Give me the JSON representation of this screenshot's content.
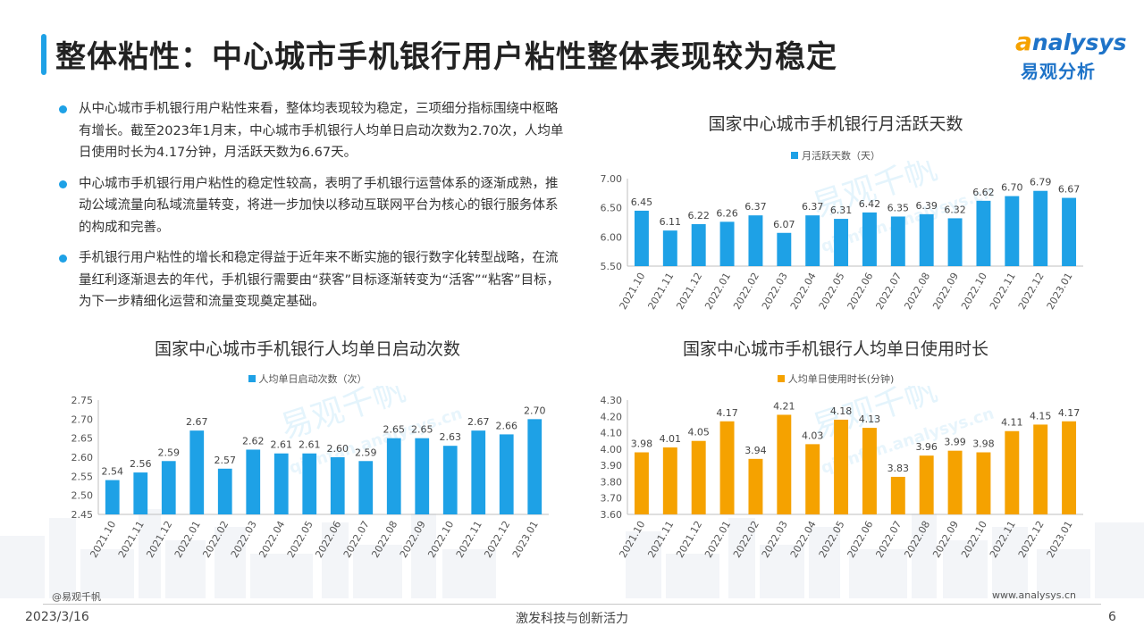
{
  "header": {
    "title": "整体粘性：中心城市手机银行用户粘性整体表现较为稳定"
  },
  "logo": {
    "brand_en_initial": "a",
    "brand_en_rest": "nalysys",
    "brand_cn": "易观分析"
  },
  "bullets": [
    "从中心城市手机银行用户粘性来看，整体均表现较为稳定，三项细分指标围绕中枢略有增长。截至2023年1月末，中心城市手机银行人均单日启动次数为2.70次，人均单日使用时长为4.17分钟，月活跃天数为6.67天。",
    "中心城市手机银行用户粘性的稳定性较高，表明了手机银行运营体系的逐渐成熟，推动公域流量向私域流量转变，将进一步加快以移动互联网平台为核心的银行服务体系的构成和完善。",
    "手机银行用户粘性的增长和稳定得益于近年来不断实施的银行数字化转型战略，在流量红利逐渐退去的年代，手机银行需要由“获客”目标逐渐转变为“活客”“粘客”目标，为下一步精细化运营和流量变现奠定基础。"
  ],
  "watermark": {
    "cn": "易观千帆",
    "en": "qianfan.analysys.cn"
  },
  "footer": {
    "brand": "@易观千帆",
    "url": "www.analysys.cn",
    "date": "2023/3/16",
    "slogan": "激发科技与创新活力",
    "page": "6"
  },
  "chart_data": [
    {
      "id": "monthly-active-days",
      "type": "bar",
      "title": "国家中心城市手机银行月活跃天数",
      "series": [
        {
          "name": "月活跃天数（天）",
          "color": "#1ea1e6",
          "values": [
            6.45,
            6.11,
            6.22,
            6.26,
            6.37,
            6.07,
            6.37,
            6.31,
            6.42,
            6.35,
            6.39,
            6.32,
            6.62,
            6.7,
            6.79,
            6.67
          ]
        }
      ],
      "categories": [
        "2021.10",
        "2021.11",
        "2021.12",
        "2022.01",
        "2022.02",
        "2022.03",
        "2022.04",
        "2022.05",
        "2022.06",
        "2022.07",
        "2022.08",
        "2022.09",
        "2022.10",
        "2022.11",
        "2022.12",
        "2023.01"
      ],
      "ylim": [
        5.5,
        7.0
      ],
      "yticks": [
        "5.50",
        "6.00",
        "6.50",
        "7.00"
      ],
      "decimals": 2,
      "grid": false,
      "legend": "top-center"
    },
    {
      "id": "daily-launches",
      "type": "bar",
      "title": "国家中心城市手机银行人均单日启动次数",
      "series": [
        {
          "name": "人均单日启动次数（次）",
          "color": "#1ea1e6",
          "values": [
            2.54,
            2.56,
            2.59,
            2.67,
            2.57,
            2.62,
            2.61,
            2.61,
            2.6,
            2.59,
            2.65,
            2.65,
            2.63,
            2.67,
            2.66,
            2.7
          ]
        }
      ],
      "categories": [
        "2021.10",
        "2021.11",
        "2021.12",
        "2022.01",
        "2022.02",
        "2022.03",
        "2022.04",
        "2022.05",
        "2022.06",
        "2022.07",
        "2022.08",
        "2022.09",
        "2022.10",
        "2022.11",
        "2022.12",
        "2023.01"
      ],
      "ylim": [
        2.45,
        2.75
      ],
      "yticks": [
        "2.45",
        "2.50",
        "2.55",
        "2.60",
        "2.65",
        "2.70",
        "2.75"
      ],
      "decimals": 2,
      "grid": false,
      "legend": "top-center"
    },
    {
      "id": "daily-usage-time",
      "type": "bar",
      "title": "国家中心城市手机银行人均单日使用时长",
      "series": [
        {
          "name": "人均单日使用时长(分钟)",
          "color": "#f5a200",
          "values": [
            3.98,
            4.01,
            4.05,
            4.17,
            3.94,
            4.21,
            4.03,
            4.18,
            4.13,
            3.83,
            3.96,
            3.99,
            3.98,
            4.11,
            4.15,
            4.17
          ]
        }
      ],
      "categories": [
        "2021.10",
        "2021.11",
        "2021.12",
        "2022.01",
        "2022.02",
        "2022.03",
        "2022.04",
        "2022.05",
        "2022.06",
        "2022.07",
        "2022.08",
        "2022.09",
        "2022.10",
        "2022.11",
        "2022.12",
        "2023.01"
      ],
      "ylim": [
        3.6,
        4.3
      ],
      "yticks": [
        "3.60",
        "3.70",
        "3.80",
        "3.90",
        "4.00",
        "4.10",
        "4.20",
        "4.30"
      ],
      "decimals": 2,
      "grid": false,
      "legend": "top-center"
    }
  ]
}
